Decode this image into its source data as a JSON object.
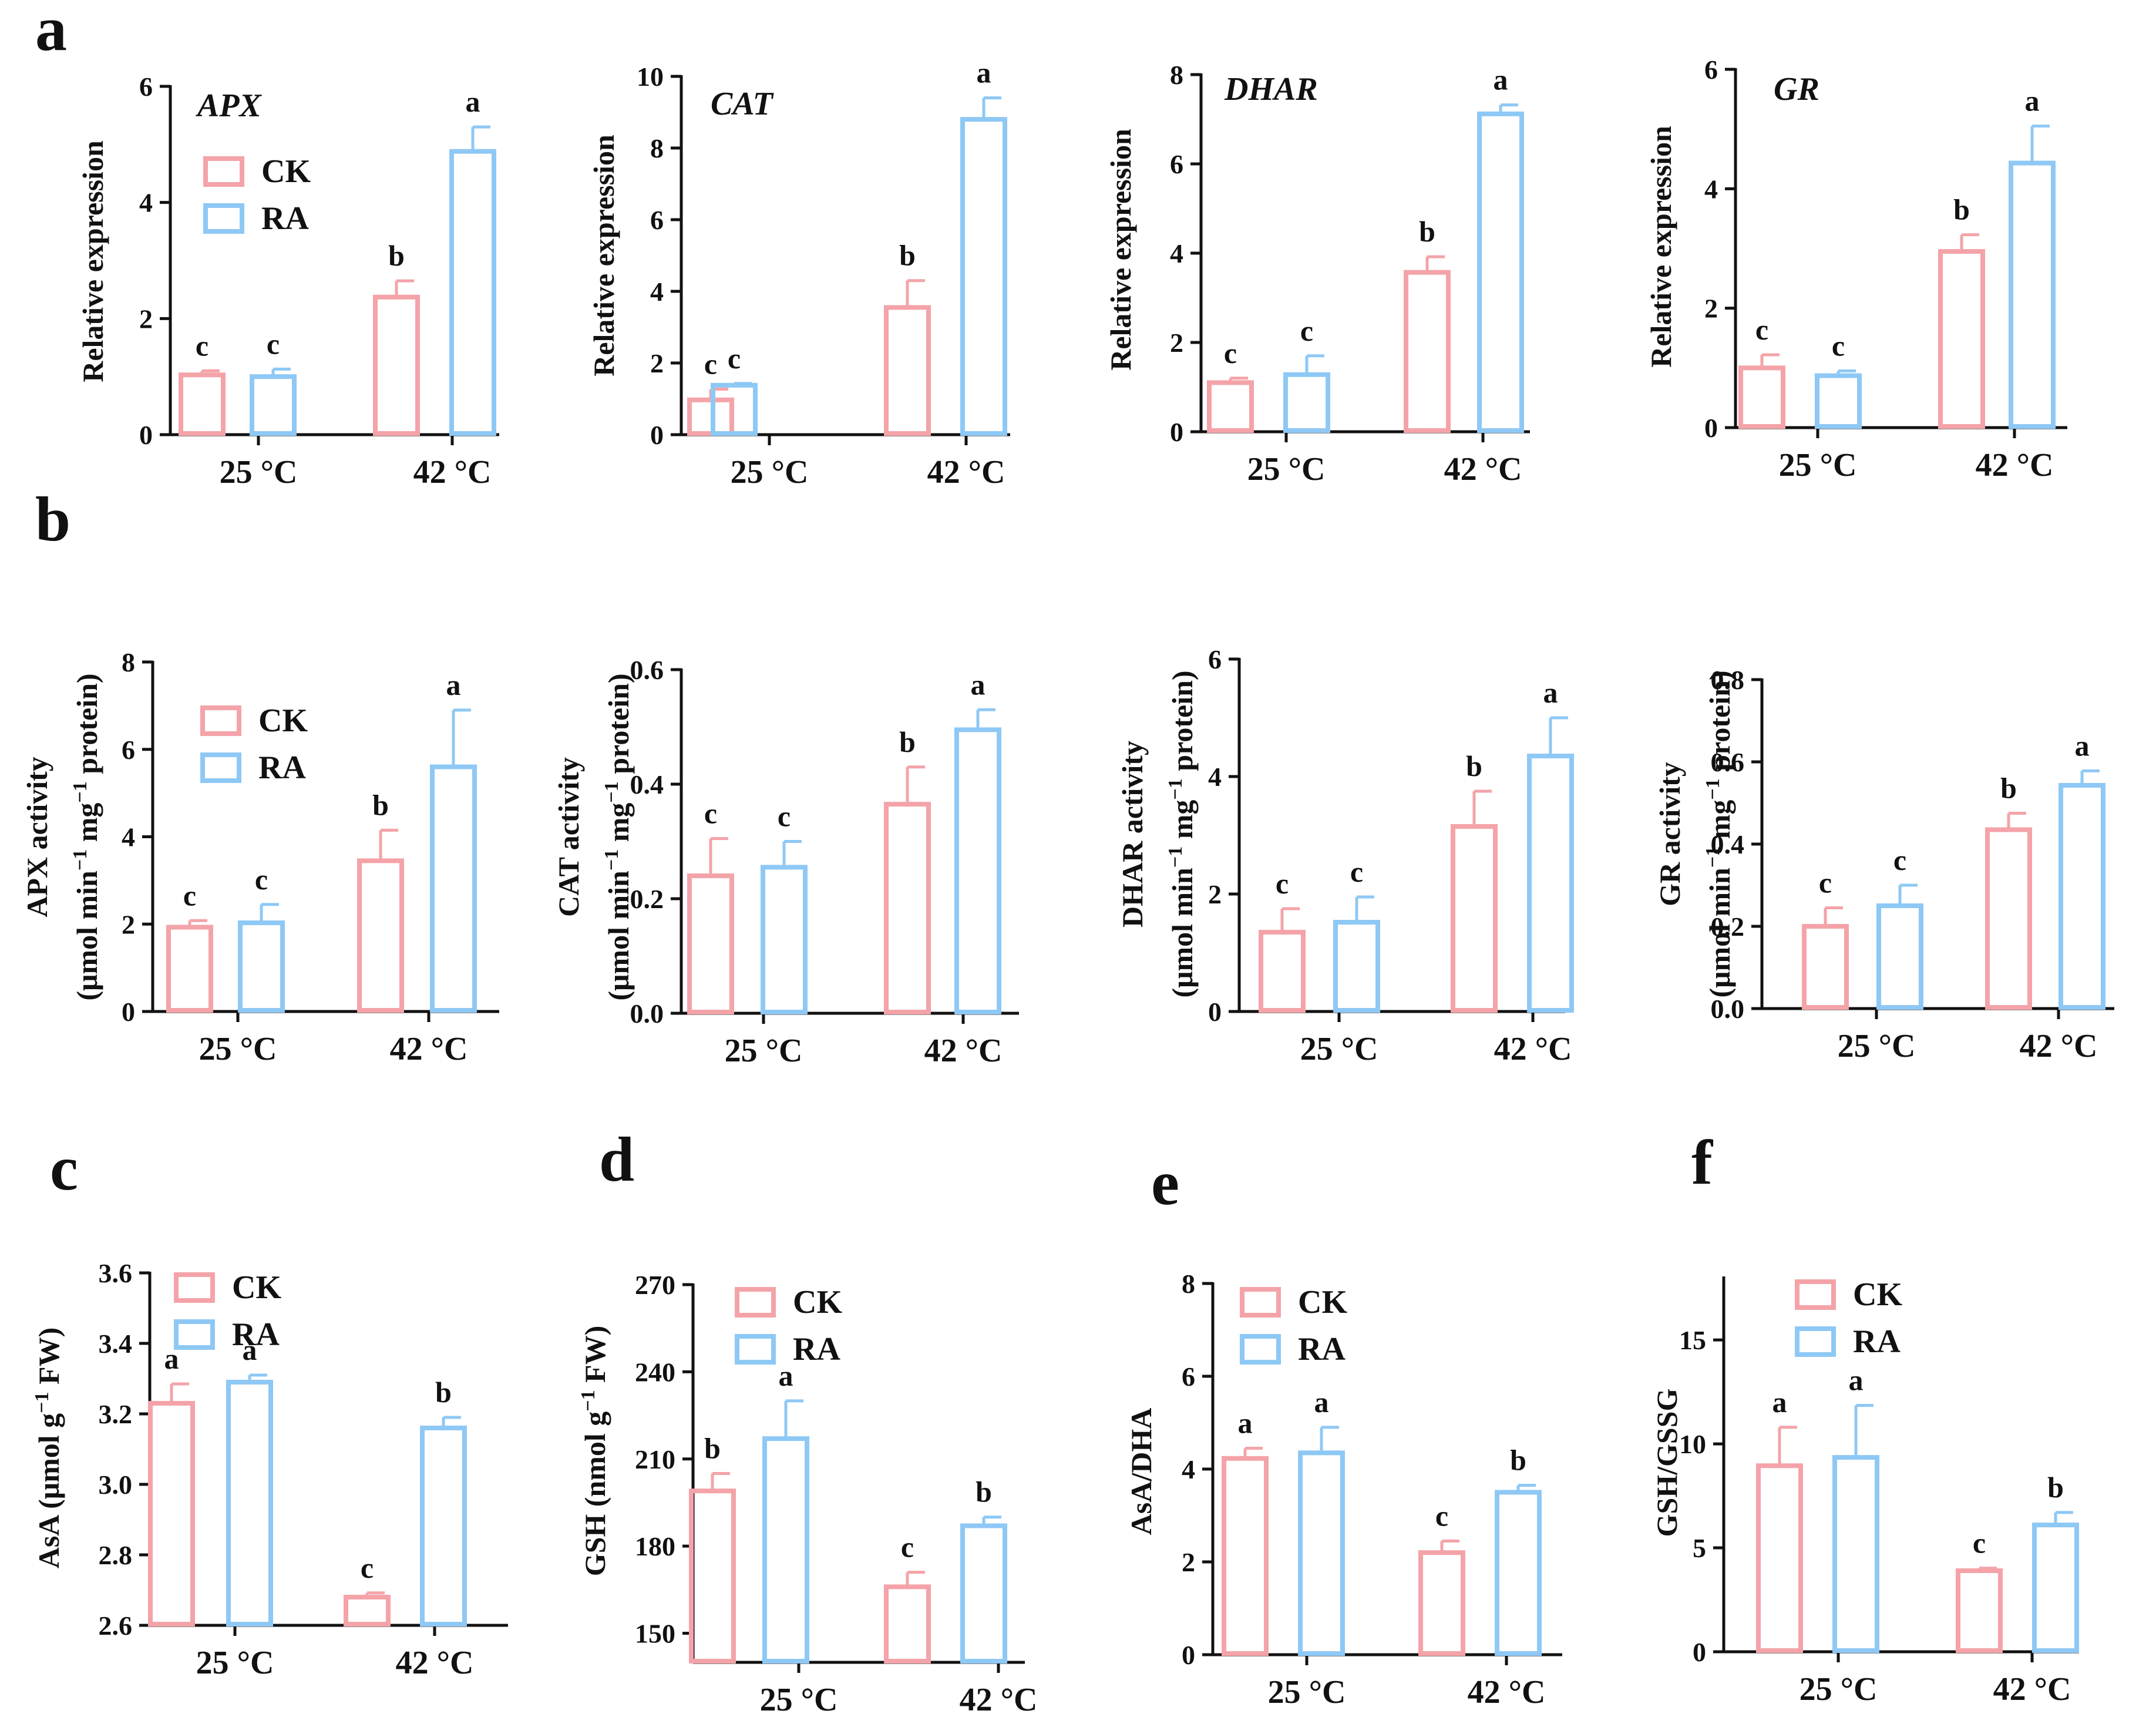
{
  "colors": {
    "CK": "#f4a3a8",
    "RA": "#8ec8f5",
    "axis": "#111111"
  },
  "chart_data": [
    {
      "id": "a1",
      "panel_letter": "a",
      "type": "bar",
      "gene_label": "APX",
      "ylabel": "Relative expression",
      "categories": [
        "25 °C",
        "42 °C"
      ],
      "ylim": [
        0,
        6
      ],
      "yticks": [
        "0",
        "2",
        "4",
        "6"
      ],
      "legend": [
        "CK",
        "RA"
      ],
      "legend_placement": "top-left",
      "series": [
        {
          "name": "CK",
          "values": [
            1.03,
            2.37
          ],
          "errors": [
            0.07,
            0.28
          ],
          "letters": [
            "c",
            "b"
          ]
        },
        {
          "name": "RA",
          "values": [
            1.0,
            4.88
          ],
          "errors": [
            0.13,
            0.42
          ],
          "letters": [
            "c",
            "a"
          ]
        }
      ]
    },
    {
      "id": "a2",
      "panel_letter": "",
      "type": "bar",
      "gene_label": "CAT",
      "ylabel": "Relative expression",
      "categories": [
        "25 °C",
        "42 °C"
      ],
      "ylim": [
        0,
        10
      ],
      "yticks": [
        "0",
        "2",
        "4",
        "6",
        "8",
        "10"
      ],
      "legend": [],
      "legend_placement": "",
      "series": [
        {
          "name": "CK",
          "values": [
            0.97,
            3.55
          ],
          "errors": [
            0.3,
            0.75
          ],
          "letters": [
            "c",
            "b"
          ]
        },
        {
          "name": "RA",
          "values": [
            1.38,
            8.8
          ],
          "errors": [
            0.05,
            0.6
          ],
          "letters": [
            "c",
            "a"
          ]
        }
      ]
    },
    {
      "id": "a3",
      "panel_letter": "",
      "type": "bar",
      "gene_label": "DHAR",
      "ylabel": "Relative expression",
      "categories": [
        "25 °C",
        "42 °C"
      ],
      "ylim": [
        0,
        8
      ],
      "yticks": [
        "0",
        "2",
        "4",
        "6",
        "8"
      ],
      "legend": [],
      "legend_placement": "",
      "series": [
        {
          "name": "CK",
          "values": [
            1.1,
            3.57
          ],
          "errors": [
            0.1,
            0.35
          ],
          "letters": [
            "c",
            "b"
          ]
        },
        {
          "name": "RA",
          "values": [
            1.28,
            7.12
          ],
          "errors": [
            0.42,
            0.2
          ],
          "letters": [
            "c",
            "a"
          ]
        }
      ]
    },
    {
      "id": "a4",
      "panel_letter": "",
      "type": "bar",
      "gene_label": "GR",
      "ylabel": "Relative expression",
      "categories": [
        "25 °C",
        "42 °C"
      ],
      "ylim": [
        0,
        6
      ],
      "yticks": [
        "0",
        "2",
        "4",
        "6"
      ],
      "legend": [],
      "legend_placement": "",
      "series": [
        {
          "name": "CK",
          "values": [
            1.0,
            2.95
          ],
          "errors": [
            0.22,
            0.28
          ],
          "letters": [
            "c",
            "b"
          ]
        },
        {
          "name": "RA",
          "values": [
            0.87,
            4.43
          ],
          "errors": [
            0.08,
            0.62
          ],
          "letters": [
            "c",
            "a"
          ]
        }
      ]
    },
    {
      "id": "b1",
      "panel_letter": "b",
      "type": "bar",
      "gene_label": "",
      "ylabel_line1": "APX activity",
      "ylabel_line2_a": "(μmol min",
      "ylabel_line2_b": " mg",
      "ylabel_line2_c": " protein)",
      "ylabel_sup": "−1",
      "categories": [
        "25 °C",
        "42 °C"
      ],
      "ylim": [
        0,
        8
      ],
      "yticks": [
        "0",
        "2",
        "4",
        "6",
        "8"
      ],
      "legend": [
        "CK",
        "RA"
      ],
      "legend_placement": "top-left",
      "series": [
        {
          "name": "CK",
          "values": [
            1.93,
            3.45
          ],
          "errors": [
            0.15,
            0.7
          ],
          "letters": [
            "c",
            "b"
          ]
        },
        {
          "name": "RA",
          "values": [
            2.03,
            5.6
          ],
          "errors": [
            0.42,
            1.3
          ],
          "letters": [
            "c",
            "a"
          ]
        }
      ]
    },
    {
      "id": "b2",
      "panel_letter": "",
      "type": "bar",
      "gene_label": "",
      "ylabel_line1": "CAT activity",
      "ylabel_line2_a": "(μmol min",
      "ylabel_line2_b": " mg",
      "ylabel_line2_c": " protein)",
      "ylabel_sup": "−1",
      "categories": [
        "25 °C",
        "42 °C"
      ],
      "ylim": [
        0,
        0.6
      ],
      "yticks": [
        "0.0",
        "0.2",
        "0.4",
        "0.6"
      ],
      "legend": [],
      "legend_placement": "",
      "series": [
        {
          "name": "CK",
          "values": [
            0.24,
            0.365
          ],
          "errors": [
            0.065,
            0.065
          ],
          "letters": [
            "c",
            "b"
          ]
        },
        {
          "name": "RA",
          "values": [
            0.255,
            0.495
          ],
          "errors": [
            0.045,
            0.035
          ],
          "letters": [
            "c",
            "a"
          ]
        }
      ]
    },
    {
      "id": "b3",
      "panel_letter": "",
      "type": "bar",
      "gene_label": "",
      "ylabel_line1": "DHAR activity",
      "ylabel_line2_a": "(μmol min",
      "ylabel_line2_b": " mg",
      "ylabel_line2_c": " protein)",
      "ylabel_sup": "−1",
      "categories": [
        "25 °C",
        "42 °C"
      ],
      "ylim": [
        0,
        6
      ],
      "yticks": [
        "0",
        "2",
        "4",
        "6"
      ],
      "legend": [],
      "legend_placement": "",
      "series": [
        {
          "name": "CK",
          "values": [
            1.35,
            3.15
          ],
          "errors": [
            0.4,
            0.6
          ],
          "letters": [
            "c",
            "b"
          ]
        },
        {
          "name": "RA",
          "values": [
            1.52,
            4.35
          ],
          "errors": [
            0.43,
            0.65
          ],
          "letters": [
            "c",
            "a"
          ]
        }
      ]
    },
    {
      "id": "b4",
      "panel_letter": "",
      "type": "bar",
      "gene_label": "",
      "ylabel_line1": "GR activity",
      "ylabel_line2_a": "(μmol min",
      "ylabel_line2_b": " mg",
      "ylabel_line2_c": " protein)",
      "ylabel_sup": "−1",
      "categories": [
        "25 °C",
        "42 °C"
      ],
      "ylim": [
        0,
        0.8
      ],
      "yticks": [
        "0.0",
        "0.2",
        "0.4",
        "0.6",
        "0.8"
      ],
      "legend": [],
      "legend_placement": "",
      "series": [
        {
          "name": "CK",
          "values": [
            0.2,
            0.435
          ],
          "errors": [
            0.045,
            0.04
          ],
          "letters": [
            "c",
            "b"
          ]
        },
        {
          "name": "RA",
          "values": [
            0.25,
            0.543
          ],
          "errors": [
            0.05,
            0.035
          ],
          "letters": [
            "c",
            "a"
          ]
        }
      ]
    },
    {
      "id": "c",
      "panel_letter": "c",
      "type": "bar",
      "gene_label": "",
      "ylabel_a": "AsA (μmol g",
      "ylabel_sup": "−1",
      "ylabel_b": " FW)",
      "categories": [
        "25 °C",
        "42 °C"
      ],
      "ylim": [
        2.6,
        3.6
      ],
      "yticks": [
        "2.6",
        "2.8",
        "3.0",
        "3.2",
        "3.4",
        "3.6"
      ],
      "legend": [
        "CK",
        "RA"
      ],
      "legend_placement": "top-left",
      "series": [
        {
          "name": "CK",
          "values": [
            3.23,
            2.68
          ],
          "errors": [
            0.055,
            0.012
          ],
          "letters": [
            "a",
            "c"
          ]
        },
        {
          "name": "RA",
          "values": [
            3.29,
            3.16
          ],
          "errors": [
            0.02,
            0.03
          ],
          "letters": [
            "a",
            "b"
          ]
        }
      ]
    },
    {
      "id": "d",
      "panel_letter": "d",
      "type": "bar",
      "gene_label": "",
      "ylabel_a": "GSH (nmol g",
      "ylabel_sup": "−1",
      "ylabel_b": " FW)",
      "categories": [
        "25 °C",
        "42 °C"
      ],
      "ylim": [
        140,
        270
      ],
      "yticks": [
        "150",
        "180",
        "210",
        "240",
        "270"
      ],
      "legend": [
        "CK",
        "RA"
      ],
      "legend_placement": "top-left",
      "series": [
        {
          "name": "CK",
          "values": [
            199,
            166
          ],
          "errors": [
            6,
            5
          ],
          "letters": [
            "b",
            "c"
          ]
        },
        {
          "name": "RA",
          "values": [
            217,
            187
          ],
          "errors": [
            13,
            3
          ],
          "letters": [
            "a",
            "b"
          ]
        }
      ]
    },
    {
      "id": "e",
      "panel_letter": "e",
      "type": "bar",
      "gene_label": "",
      "ylabel": "AsA/DHA",
      "categories": [
        "25 °C",
        "42 °C"
      ],
      "ylim": [
        0,
        8
      ],
      "yticks": [
        "0",
        "2",
        "4",
        "6",
        "8"
      ],
      "legend": [
        "CK",
        "RA"
      ],
      "legend_placement": "top-left",
      "series": [
        {
          "name": "CK",
          "values": [
            4.23,
            2.2
          ],
          "errors": [
            0.22,
            0.25
          ],
          "letters": [
            "a",
            "c"
          ]
        },
        {
          "name": "RA",
          "values": [
            4.35,
            3.5
          ],
          "errors": [
            0.55,
            0.15
          ],
          "letters": [
            "a",
            "b"
          ]
        }
      ]
    },
    {
      "id": "f",
      "panel_letter": "f",
      "type": "bar",
      "gene_label": "",
      "ylabel": "GSH/GSSG",
      "categories": [
        "25 °C",
        "42 °C"
      ],
      "ylim": [
        0,
        18
      ],
      "yticks": [
        "0",
        "5",
        "10",
        "15"
      ],
      "legend": [
        "CK",
        "RA"
      ],
      "legend_placement": "top-left",
      "series": [
        {
          "name": "CK",
          "values": [
            8.95,
            3.9
          ],
          "errors": [
            1.85,
            0.12
          ],
          "letters": [
            "a",
            "c"
          ]
        },
        {
          "name": "RA",
          "values": [
            9.35,
            6.1
          ],
          "errors": [
            2.5,
            0.6
          ],
          "letters": [
            "a",
            "b"
          ]
        }
      ]
    }
  ]
}
